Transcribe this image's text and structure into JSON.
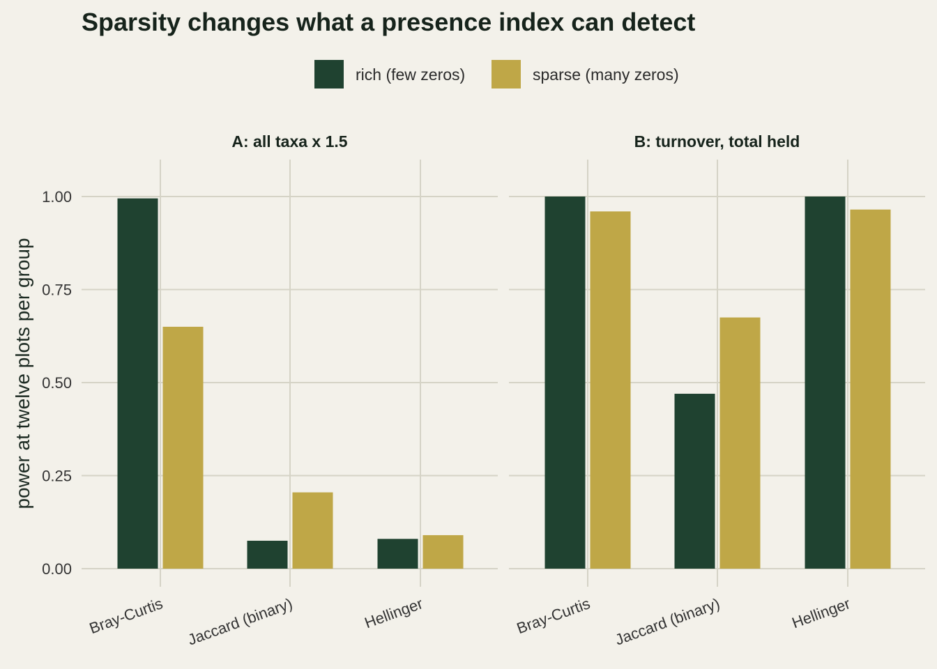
{
  "chart_data": {
    "type": "bar",
    "title": "Sparsity changes what a presence index can detect",
    "ylabel": "power at twelve plots per group",
    "xlabel": "",
    "ylim": [
      0,
      1.08
    ],
    "yticks": [
      "0.00",
      "0.25",
      "0.50",
      "0.75",
      "1.00"
    ],
    "ytick_values": [
      0,
      0.25,
      0.5,
      0.75,
      1.0
    ],
    "grid": true,
    "legend_position": "top",
    "categories": [
      "Bray-Curtis",
      "Jaccard (binary)",
      "Hellinger"
    ],
    "series_names": [
      "rich (few zeros)",
      "sparse (many zeros)"
    ],
    "colors": [
      "#1f4230",
      "#bfa747"
    ],
    "panels": [
      {
        "title": "A: all taxa x 1.5",
        "series": [
          {
            "name": "rich (few zeros)",
            "values": [
              0.995,
              0.075,
              0.08
            ]
          },
          {
            "name": "sparse (many zeros)",
            "values": [
              0.65,
              0.205,
              0.09
            ]
          }
        ]
      },
      {
        "title": "B: turnover, total held",
        "series": [
          {
            "name": "rich (few zeros)",
            "values": [
              1.0,
              0.47,
              1.0
            ]
          },
          {
            "name": "sparse (many zeros)",
            "values": [
              0.96,
              0.675,
              0.965
            ]
          }
        ]
      }
    ]
  }
}
